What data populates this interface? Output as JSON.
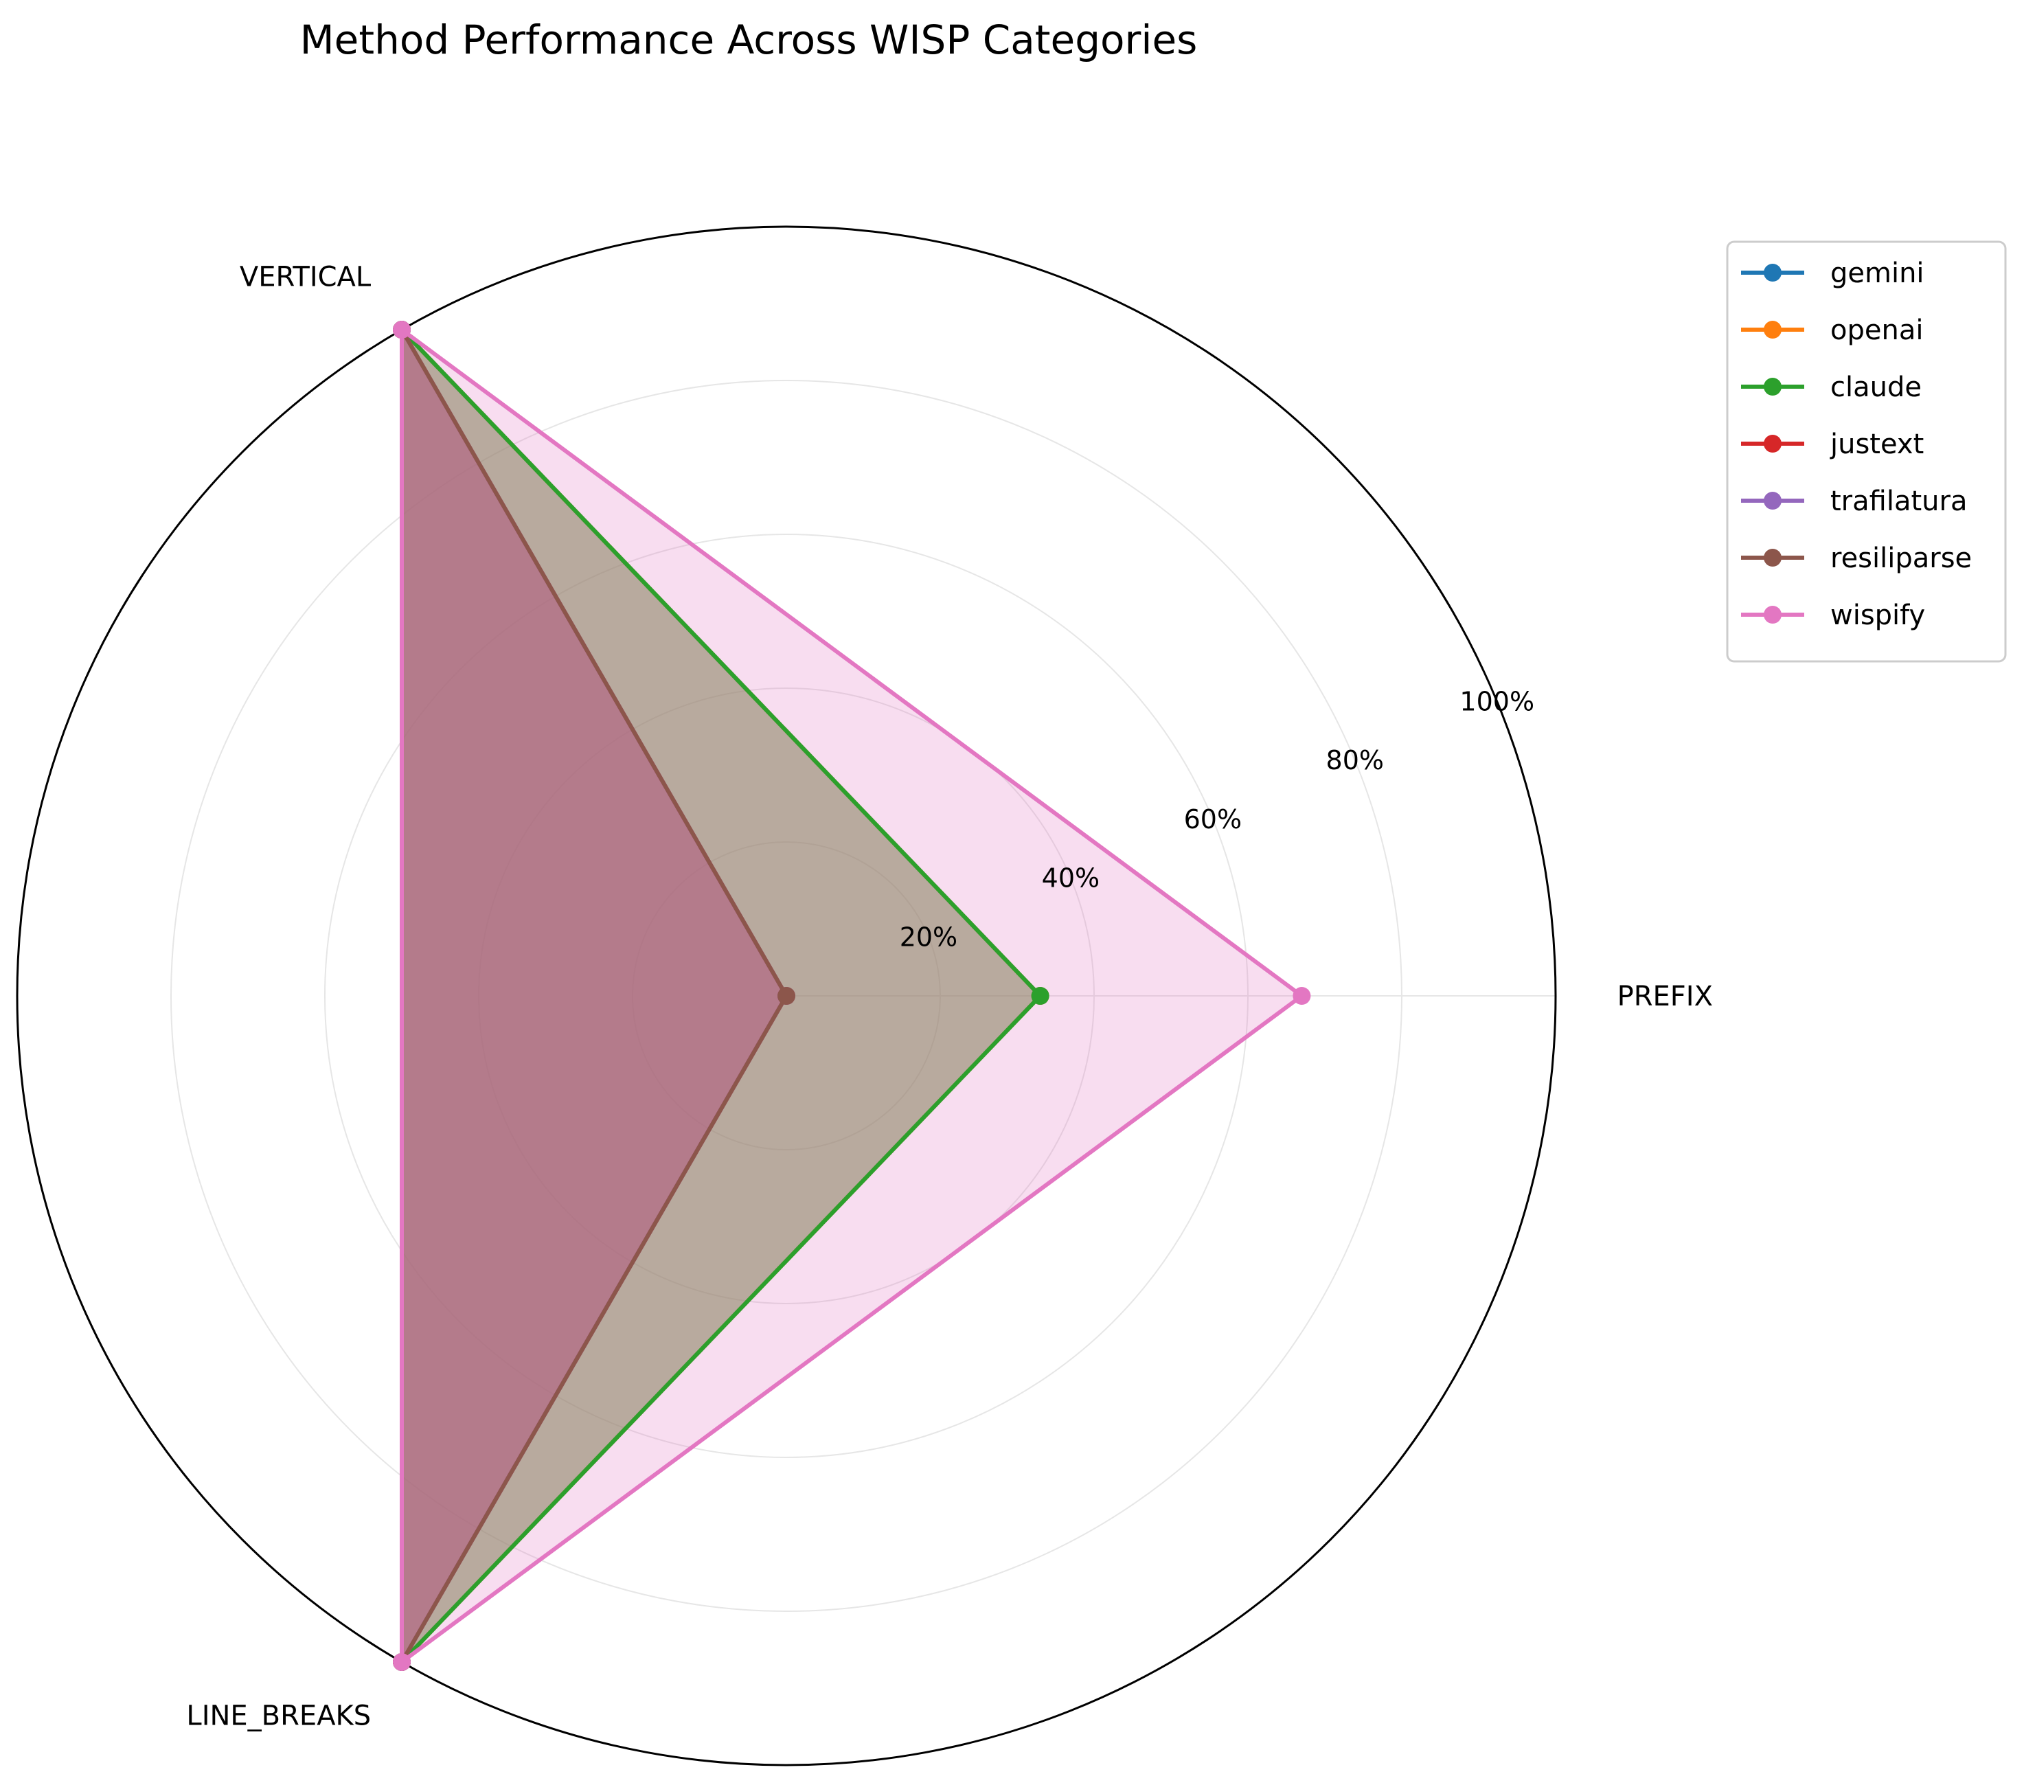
{
  "chart_data": {
    "type": "radar",
    "title": "Method Performance Across WISP Categories",
    "categories": [
      "PREFIX",
      "VERTICAL",
      "LINE_BREAKS"
    ],
    "rlim": [
      0,
      100
    ],
    "rticks": [
      20,
      40,
      60,
      80,
      100
    ],
    "rtick_labels": [
      "20%",
      "40%",
      "60%",
      "80%",
      "100%"
    ],
    "grid": true,
    "legend_position": "upper-right outside",
    "series": [
      {
        "name": "gemini",
        "color": "#1f77b4",
        "values": [
          33,
          100,
          100
        ]
      },
      {
        "name": "openai",
        "color": "#ff7f0e",
        "values": [
          33,
          100,
          100
        ]
      },
      {
        "name": "claude",
        "color": "#2ca02c",
        "values": [
          33,
          100,
          100
        ]
      },
      {
        "name": "justext",
        "color": "#d62728",
        "values": [
          0,
          100,
          100
        ]
      },
      {
        "name": "trafilatura",
        "color": "#9467bd",
        "values": [
          0,
          100,
          100
        ]
      },
      {
        "name": "resiliparse",
        "color": "#8c564b",
        "values": [
          0,
          100,
          100
        ]
      },
      {
        "name": "wispify",
        "color": "#e377c2",
        "values": [
          67,
          100,
          100
        ]
      }
    ]
  }
}
